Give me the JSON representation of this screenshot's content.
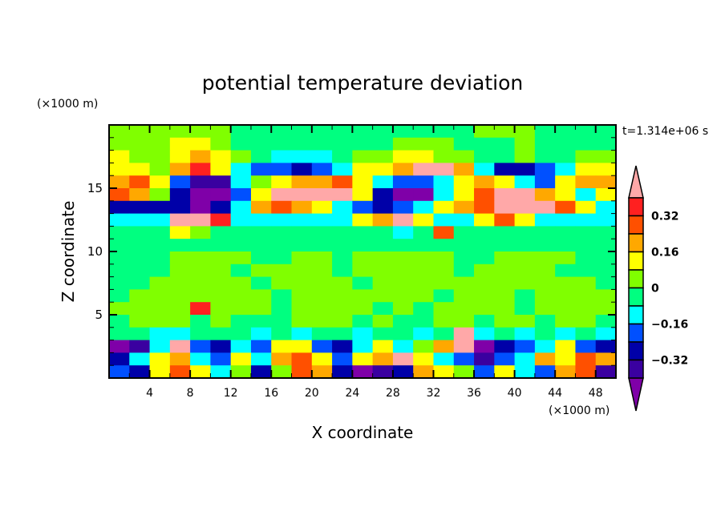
{
  "chart_data": {
    "type": "heatmap",
    "title": "potential temperature deviation",
    "xlabel": "X coordinate",
    "ylabel": "Z coordinate",
    "x_unit": "(×1000 m)",
    "y_unit": "(×1000 m)",
    "time_label": "t=1.314e+06 s",
    "xlim": [
      0,
      50
    ],
    "ylim": [
      0,
      20
    ],
    "x_ticks": [
      4,
      8,
      12,
      16,
      20,
      24,
      28,
      32,
      36,
      40,
      44,
      48
    ],
    "y_ticks": [
      5,
      10,
      15
    ],
    "grid": false,
    "x_centers": [
      1,
      3,
      5,
      7,
      9,
      11,
      13,
      15,
      17,
      19,
      21,
      23,
      25,
      27,
      29,
      31,
      33,
      35,
      37,
      39,
      41,
      43,
      45,
      47,
      49
    ],
    "z_centers": [
      19.5,
      18.5,
      17.5,
      16.5,
      15.5,
      14.5,
      13.5,
      12.5,
      11.5,
      10.5,
      9.5,
      8.5,
      7.5,
      6.5,
      5.5,
      4.5,
      3.5,
      2.5,
      1.5,
      0.5
    ],
    "values": [
      [
        0.04,
        0.04,
        0.04,
        0.04,
        0.04,
        0.04,
        -0.04,
        -0.04,
        -0.04,
        -0.04,
        -0.04,
        -0.04,
        -0.04,
        -0.04,
        -0.04,
        -0.04,
        -0.04,
        -0.04,
        0.04,
        0.04,
        0.04,
        -0.04,
        -0.04,
        -0.04,
        -0.04
      ],
      [
        0.04,
        0.04,
        0.04,
        0.12,
        0.12,
        0.04,
        -0.04,
        -0.04,
        -0.04,
        -0.04,
        -0.04,
        -0.04,
        -0.04,
        -0.04,
        0.04,
        0.04,
        0.04,
        -0.04,
        -0.04,
        -0.04,
        0.04,
        -0.04,
        -0.04,
        -0.04,
        -0.04
      ],
      [
        0.12,
        0.04,
        0.04,
        0.12,
        0.2,
        0.12,
        0.04,
        -0.04,
        -0.12,
        -0.12,
        -0.12,
        -0.04,
        0.04,
        0.04,
        0.12,
        0.12,
        0.04,
        0.04,
        -0.04,
        -0.04,
        0.04,
        -0.04,
        -0.04,
        0.04,
        0.04
      ],
      [
        0.12,
        0.12,
        0.04,
        0.2,
        0.36,
        0.12,
        -0.12,
        -0.2,
        -0.2,
        -0.28,
        -0.2,
        -0.12,
        0.12,
        0.12,
        0.2,
        0.44,
        0.44,
        0.2,
        -0.12,
        -0.28,
        -0.28,
        -0.2,
        -0.12,
        0.12,
        0.12
      ],
      [
        0.2,
        0.28,
        0.12,
        -0.2,
        -0.36,
        -0.36,
        -0.12,
        0.04,
        0.12,
        0.2,
        0.2,
        0.28,
        0.12,
        -0.12,
        -0.2,
        -0.2,
        -0.12,
        0.12,
        0.2,
        0.12,
        -0.12,
        -0.2,
        0.12,
        0.2,
        0.2
      ],
      [
        0.28,
        0.2,
        0.04,
        -0.28,
        -0.44,
        -0.44,
        -0.2,
        0.12,
        0.44,
        0.44,
        0.44,
        0.44,
        0.12,
        -0.28,
        -0.44,
        -0.44,
        -0.12,
        0.12,
        0.28,
        0.44,
        0.44,
        0.2,
        0.12,
        -0.12,
        0.12
      ],
      [
        -0.28,
        -0.28,
        -0.28,
        -0.28,
        -0.44,
        -0.28,
        -0.12,
        0.2,
        0.28,
        0.2,
        0.12,
        -0.12,
        -0.2,
        -0.28,
        -0.2,
        -0.12,
        0.12,
        0.2,
        0.28,
        0.44,
        0.44,
        0.44,
        0.28,
        0.12,
        -0.12
      ],
      [
        -0.12,
        -0.12,
        -0.12,
        0.44,
        0.44,
        0.36,
        -0.12,
        -0.12,
        -0.12,
        -0.12,
        -0.12,
        -0.12,
        0.12,
        0.2,
        0.44,
        0.12,
        -0.12,
        -0.12,
        0.12,
        0.28,
        0.12,
        -0.12,
        -0.12,
        -0.12,
        -0.12
      ],
      [
        -0.04,
        -0.04,
        -0.04,
        0.12,
        0.04,
        -0.04,
        -0.04,
        -0.04,
        -0.04,
        -0.04,
        -0.04,
        -0.04,
        -0.04,
        -0.04,
        -0.12,
        -0.04,
        0.28,
        -0.04,
        -0.04,
        -0.04,
        -0.04,
        -0.04,
        -0.04,
        -0.04,
        -0.04
      ],
      [
        -0.04,
        -0.04,
        -0.04,
        -0.04,
        -0.04,
        -0.04,
        -0.04,
        -0.04,
        -0.04,
        -0.04,
        -0.04,
        -0.04,
        -0.04,
        -0.04,
        -0.04,
        -0.04,
        -0.04,
        -0.04,
        -0.04,
        -0.04,
        -0.04,
        -0.04,
        -0.04,
        -0.04,
        -0.04
      ],
      [
        -0.04,
        -0.04,
        -0.04,
        0.04,
        0.04,
        0.04,
        0.04,
        -0.04,
        -0.04,
        0.04,
        0.04,
        -0.04,
        0.04,
        0.04,
        0.04,
        0.04,
        0.04,
        -0.04,
        -0.04,
        0.04,
        0.04,
        0.04,
        0.04,
        -0.04,
        -0.04
      ],
      [
        -0.04,
        -0.04,
        -0.04,
        0.04,
        0.04,
        0.04,
        -0.04,
        0.04,
        0.04,
        0.04,
        0.04,
        -0.04,
        0.04,
        0.04,
        0.04,
        0.04,
        0.04,
        -0.04,
        0.04,
        0.04,
        0.04,
        0.04,
        -0.04,
        -0.04,
        -0.04
      ],
      [
        -0.04,
        -0.04,
        0.04,
        0.04,
        0.04,
        0.04,
        0.04,
        -0.04,
        0.04,
        0.04,
        0.04,
        0.04,
        -0.04,
        0.04,
        0.04,
        0.04,
        0.04,
        0.04,
        0.04,
        0.04,
        0.04,
        0.04,
        0.04,
        0.04,
        -0.04
      ],
      [
        -0.04,
        0.04,
        0.04,
        0.04,
        0.04,
        0.04,
        0.04,
        0.04,
        -0.04,
        0.04,
        0.04,
        0.04,
        0.04,
        0.04,
        0.04,
        0.04,
        -0.04,
        0.04,
        0.04,
        0.04,
        -0.04,
        0.04,
        0.04,
        0.04,
        0.04
      ],
      [
        0.04,
        0.04,
        0.04,
        0.04,
        0.36,
        0.04,
        0.04,
        0.04,
        -0.04,
        0.04,
        0.04,
        0.04,
        0.04,
        -0.04,
        0.04,
        -0.04,
        0.04,
        0.04,
        0.04,
        0.04,
        -0.04,
        0.04,
        0.04,
        0.04,
        0.04
      ],
      [
        -0.04,
        0.04,
        0.04,
        0.04,
        -0.04,
        0.04,
        -0.04,
        -0.04,
        -0.04,
        0.04,
        0.04,
        0.04,
        -0.04,
        0.04,
        -0.04,
        -0.04,
        0.04,
        0.04,
        -0.04,
        0.04,
        0.04,
        -0.04,
        0.04,
        0.04,
        -0.04
      ],
      [
        -0.04,
        -0.04,
        -0.12,
        -0.12,
        -0.04,
        -0.04,
        -0.04,
        -0.12,
        -0.04,
        -0.12,
        -0.04,
        -0.04,
        -0.12,
        -0.04,
        -0.04,
        -0.12,
        -0.04,
        0.44,
        -0.12,
        -0.04,
        -0.12,
        -0.04,
        -0.12,
        -0.04,
        -0.12
      ],
      [
        -0.44,
        -0.36,
        -0.12,
        0.44,
        -0.2,
        -0.28,
        -0.12,
        -0.2,
        0.12,
        0.12,
        -0.2,
        -0.28,
        -0.12,
        0.12,
        -0.12,
        0.04,
        0.2,
        0.44,
        -0.44,
        -0.28,
        -0.2,
        -0.12,
        0.12,
        -0.2,
        -0.28
      ],
      [
        -0.28,
        -0.12,
        0.12,
        0.2,
        -0.12,
        -0.2,
        0.12,
        -0.12,
        0.2,
        0.28,
        0.12,
        -0.2,
        0.12,
        0.2,
        0.44,
        0.12,
        -0.12,
        -0.2,
        -0.36,
        -0.2,
        -0.12,
        0.2,
        0.12,
        0.28,
        0.2
      ],
      [
        -0.2,
        -0.28,
        0.12,
        0.28,
        0.12,
        -0.12,
        0.04,
        -0.28,
        0.04,
        0.28,
        0.2,
        -0.28,
        -0.44,
        -0.36,
        -0.28,
        0.2,
        0.12,
        0.04,
        -0.2,
        0.12,
        -0.12,
        -0.2,
        0.2,
        0.28,
        -0.36
      ]
    ],
    "levels": [
      -0.4,
      -0.32,
      -0.24,
      -0.16,
      -0.08,
      0,
      0.08,
      0.16,
      0.24,
      0.32,
      0.4
    ],
    "colors": [
      "#7f00a8",
      "#3a00a0",
      "#0000a8",
      "#0050ff",
      "#00ffff",
      "#00ff80",
      "#80ff00",
      "#ffff00",
      "#ffa800",
      "#ff5000",
      "#ff2020",
      "#ffa8a8"
    ],
    "colorbar_labels": [
      "0.32",
      "0.16",
      "0",
      "−0.16",
      "−0.32"
    ],
    "colorbar_label_values": [
      0.32,
      0.16,
      0,
      -0.16,
      -0.32
    ]
  }
}
